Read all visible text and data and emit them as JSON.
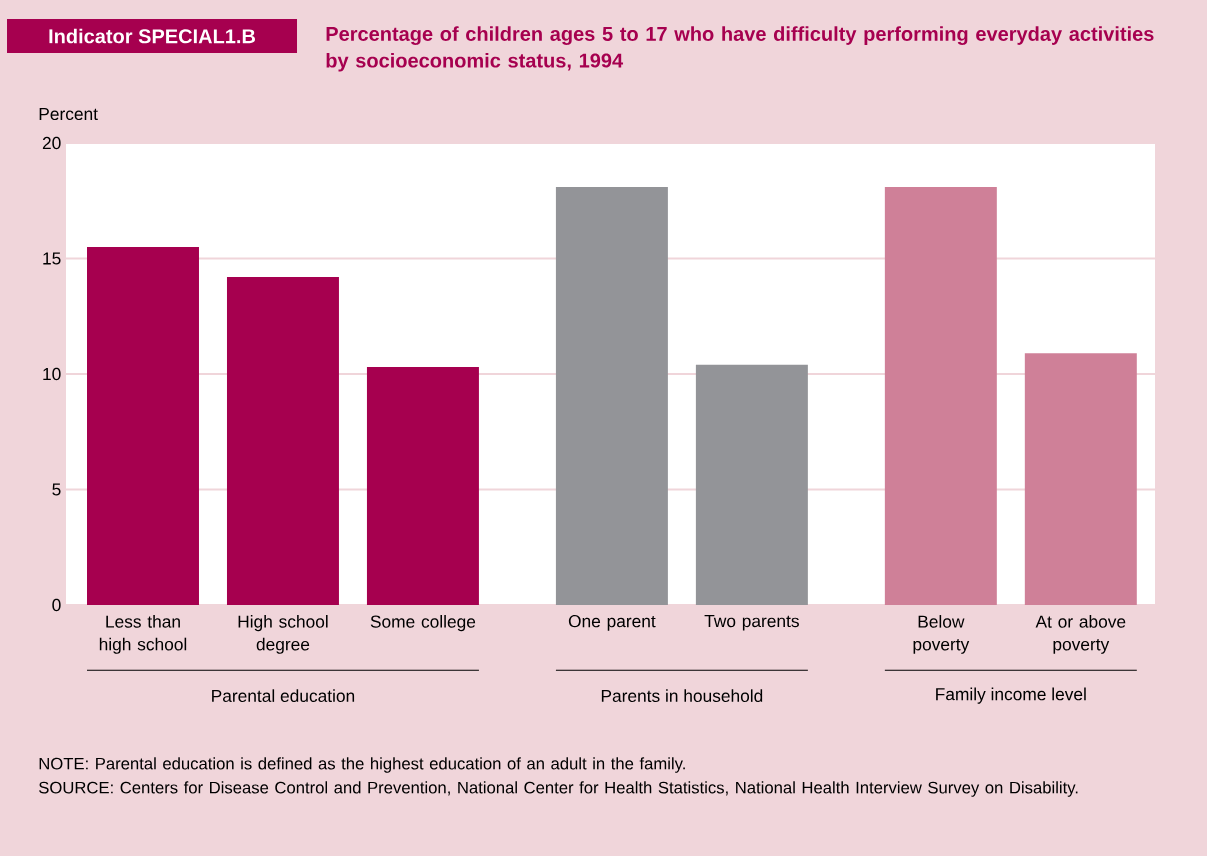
{
  "chart_data": {
    "type": "bar",
    "title": "Indicator SPECIAL1.B",
    "subtitle": "Percentage of children ages 5 to 17 who have difficulty performing everyday activities by socioeconomic status, 1994",
    "ylabel": "Percent",
    "categories": [
      "Less than high school",
      "High school degree",
      "Some college",
      "One parent",
      "Two parents",
      "Below poverty",
      "At or above poverty"
    ],
    "values": [
      15.5,
      14.2,
      10.3,
      18.1,
      10.4,
      18.1,
      10.9
    ],
    "colors": [
      "#a6004f",
      "#a6004f",
      "#a6004f",
      "#939498",
      "#939498",
      "#cf8098",
      "#cf8098"
    ],
    "ylim": [
      0,
      20
    ],
    "yticks": [
      0,
      5,
      10,
      15,
      20
    ],
    "grid": "y",
    "annotations": [
      "Parental education",
      "Parents in household",
      "Family income level",
      "NOTE: Parental education is defined as the highest education of an adult in the family.",
      "SOURCE: Centers for Disease Control and Prevention, National Center for Health Statistics, National Health Interview Survey on Disability."
    ]
  }
}
